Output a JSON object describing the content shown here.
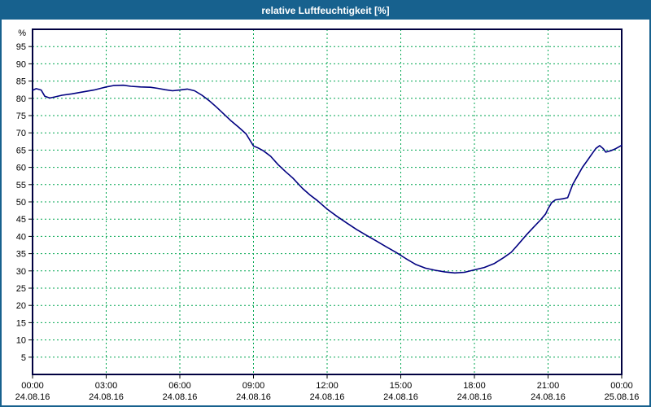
{
  "window": {
    "title": "relative Luftfeuchtigkeit [%]"
  },
  "colors": {
    "frame_blue": "#17618E",
    "grid_green": "#00A651",
    "line_navy": "#000080",
    "plot_border": "#000040",
    "title_text": "#FFFFFF"
  },
  "chart_data": {
    "type": "line",
    "title": "relative Luftfeuchtigkeit [%]",
    "ylabel": "%",
    "xlabel": "",
    "ylim": [
      0,
      100
    ],
    "xlim_hours": [
      0,
      24
    ],
    "grid": "dashed-green",
    "legend": "none",
    "y_ticks": [
      95,
      90,
      85,
      80,
      75,
      70,
      65,
      60,
      55,
      50,
      45,
      40,
      35,
      30,
      25,
      20,
      15,
      10,
      5
    ],
    "x_ticks": [
      {
        "h": 0,
        "time": "00:00",
        "date": "24.08.16"
      },
      {
        "h": 3,
        "time": "03:00",
        "date": "24.08.16"
      },
      {
        "h": 6,
        "time": "06:00",
        "date": "24.08.16"
      },
      {
        "h": 9,
        "time": "09:00",
        "date": "24.08.16"
      },
      {
        "h": 12,
        "time": "12:00",
        "date": "24.08.16"
      },
      {
        "h": 15,
        "time": "15:00",
        "date": "24.08.16"
      },
      {
        "h": 18,
        "time": "18:00",
        "date": "24.08.16"
      },
      {
        "h": 21,
        "time": "21:00",
        "date": "24.08.16"
      },
      {
        "h": 24,
        "time": "00:00",
        "date": "25.08.16"
      }
    ],
    "series": [
      {
        "color": "#000080",
        "points": [
          [
            0,
            82.3
          ],
          [
            0.15,
            82.8
          ],
          [
            0.35,
            82.4
          ],
          [
            0.5,
            80.6
          ],
          [
            0.7,
            80.1
          ],
          [
            0.9,
            80.4
          ],
          [
            1.2,
            80.9
          ],
          [
            1.6,
            81.3
          ],
          [
            2,
            81.8
          ],
          [
            2.5,
            82.4
          ],
          [
            3,
            83.3
          ],
          [
            3.3,
            83.7
          ],
          [
            3.7,
            83.8
          ],
          [
            4,
            83.5
          ],
          [
            4.4,
            83.3
          ],
          [
            4.8,
            83.2
          ],
          [
            5.1,
            82.9
          ],
          [
            5.4,
            82.5
          ],
          [
            5.7,
            82.2
          ],
          [
            6,
            82.4
          ],
          [
            6.3,
            82.7
          ],
          [
            6.6,
            82.2
          ],
          [
            6.9,
            80.9
          ],
          [
            7.2,
            79.3
          ],
          [
            7.5,
            77.4
          ],
          [
            7.8,
            75.4
          ],
          [
            8.1,
            73.4
          ],
          [
            8.4,
            71.6
          ],
          [
            8.7,
            69.7
          ],
          [
            9,
            66.2
          ],
          [
            9.2,
            65.6
          ],
          [
            9.4,
            64.8
          ],
          [
            9.7,
            63.2
          ],
          [
            10,
            60.8
          ],
          [
            10.3,
            58.8
          ],
          [
            10.6,
            56.9
          ],
          [
            11,
            53.9
          ],
          [
            11.3,
            52
          ],
          [
            11.6,
            50.4
          ],
          [
            12,
            47.9
          ],
          [
            12.4,
            45.8
          ],
          [
            12.8,
            43.9
          ],
          [
            13.2,
            42
          ],
          [
            13.6,
            40.3
          ],
          [
            14,
            38.7
          ],
          [
            14.4,
            37
          ],
          [
            14.8,
            35.4
          ],
          [
            15.2,
            33.6
          ],
          [
            15.6,
            31.9
          ],
          [
            16,
            30.8
          ],
          [
            16.4,
            30.2
          ],
          [
            16.8,
            29.7
          ],
          [
            17.2,
            29.4
          ],
          [
            17.6,
            29.6
          ],
          [
            18,
            30.3
          ],
          [
            18.4,
            31
          ],
          [
            18.8,
            32.1
          ],
          [
            19.2,
            33.9
          ],
          [
            19.5,
            35.4
          ],
          [
            19.8,
            37.8
          ],
          [
            20.1,
            40.3
          ],
          [
            20.4,
            42.6
          ],
          [
            20.7,
            44.8
          ],
          [
            20.9,
            46.5
          ],
          [
            21.0,
            48
          ],
          [
            21.15,
            49.8
          ],
          [
            21.3,
            50.6
          ],
          [
            21.6,
            50.9
          ],
          [
            21.8,
            51.2
          ],
          [
            22.0,
            55
          ],
          [
            22.2,
            57.5
          ],
          [
            22.4,
            60
          ],
          [
            22.6,
            62
          ],
          [
            22.8,
            64
          ],
          [
            22.95,
            65.5
          ],
          [
            23.1,
            66.3
          ],
          [
            23.25,
            65.4
          ],
          [
            23.35,
            64.4
          ],
          [
            23.55,
            64.8
          ],
          [
            23.75,
            65.4
          ],
          [
            24,
            66.4
          ]
        ]
      }
    ]
  }
}
